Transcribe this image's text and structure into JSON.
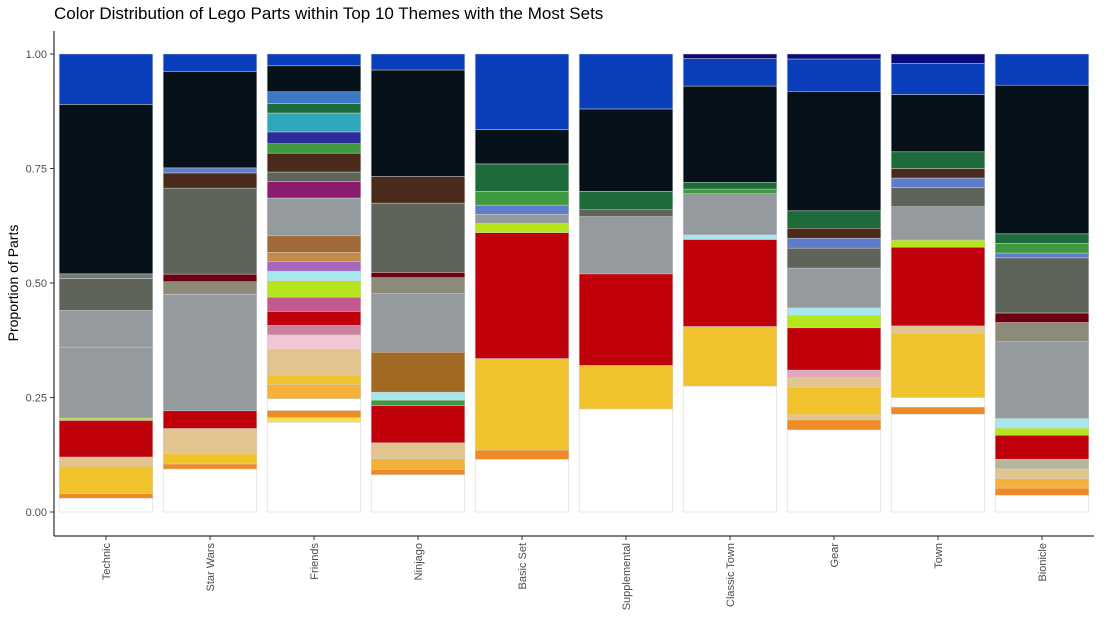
{
  "chart_data": {
    "type": "bar",
    "stacked": true,
    "normalized": true,
    "title": "Color Distribution of Lego Parts within Top 10 Themes with the Most Sets",
    "xlabel": "",
    "ylabel": "Proportion of Parts",
    "ylim": [
      0,
      1.0
    ],
    "yticks": [
      "0.00",
      "0.25",
      "0.50",
      "0.75",
      "1.00"
    ],
    "grid": false,
    "legend": "none",
    "categories": [
      "Technic",
      "Star Wars",
      "Friends",
      "Ninjago",
      "Basic Set",
      "Supplemental",
      "Classic Town",
      "Gear",
      "Town",
      "Bionicle"
    ],
    "bars": [
      {
        "category": "Technic",
        "segments": [
          {
            "color": "#ffffff",
            "value": 0.03
          },
          {
            "color": "#f08a24",
            "value": 0.01
          },
          {
            "color": "#f0c22c",
            "value": 0.06
          },
          {
            "color": "#e2c48f",
            "value": 0.02
          },
          {
            "color": "#c0000a",
            "value": 0.08
          },
          {
            "color": "#b5e61d",
            "value": 0.005
          },
          {
            "color": "#949a9d",
            "value": 0.155
          },
          {
            "color": "#949a9d",
            "value": 0.08
          },
          {
            "color": "#5f645b",
            "value": 0.07
          },
          {
            "color": "#707b76",
            "value": 0.01
          },
          {
            "color": "#06111a",
            "value": 0.37
          },
          {
            "color": "#0a3ebb",
            "value": 0.11
          }
        ]
      },
      {
        "category": "Star Wars",
        "segments": [
          {
            "color": "#ffffff",
            "value": 0.085
          },
          {
            "color": "#f08a24",
            "value": 0.01
          },
          {
            "color": "#f0c22c",
            "value": 0.02
          },
          {
            "color": "#e2c48f",
            "value": 0.05
          },
          {
            "color": "#c0000a",
            "value": 0.035
          },
          {
            "color": "#949a9d",
            "value": 0.23
          },
          {
            "color": "#8b8b78",
            "value": 0.025
          },
          {
            "color": "#6b0010",
            "value": 0.015
          },
          {
            "color": "#5f645b",
            "value": 0.17
          },
          {
            "color": "#4a2a1a",
            "value": 0.03
          },
          {
            "color": "#5e7cc9",
            "value": 0.01
          },
          {
            "color": "#06111a",
            "value": 0.19
          },
          {
            "color": "#0a3ebb",
            "value": 0.035
          }
        ]
      },
      {
        "category": "Friends",
        "segments": [
          {
            "color": "#ffffff",
            "value": 0.19
          },
          {
            "color": "#f7e14a",
            "value": 0.01
          },
          {
            "color": "#f08a24",
            "value": 0.015
          },
          {
            "color": "#ffffff",
            "value": 0.025
          },
          {
            "color": "#f6b13a",
            "value": 0.03
          },
          {
            "color": "#f0c22c",
            "value": 0.02
          },
          {
            "color": "#e2c48f",
            "value": 0.055
          },
          {
            "color": "#f2c6d6",
            "value": 0.03
          },
          {
            "color": "#c9829e",
            "value": 0.02
          },
          {
            "color": "#c0000a",
            "value": 0.03
          },
          {
            "color": "#c25a8e",
            "value": 0.03
          },
          {
            "color": "#b5e61d",
            "value": 0.035
          },
          {
            "color": "#a6e8ee",
            "value": 0.02
          },
          {
            "color": "#a566bf",
            "value": 0.02
          },
          {
            "color": "#c48a4a",
            "value": 0.02
          },
          {
            "color": "#a06a3a",
            "value": 0.035
          },
          {
            "color": "#949a9d",
            "value": 0.08
          },
          {
            "color": "#8a1c6e",
            "value": 0.035
          },
          {
            "color": "#5f645b",
            "value": 0.02
          },
          {
            "color": "#4a2a1a",
            "value": 0.04
          },
          {
            "color": "#3f9a3f",
            "value": 0.02
          },
          {
            "color": "#2c2c9a",
            "value": 0.025
          },
          {
            "color": "#2fa6bc",
            "value": 0.04
          },
          {
            "color": "#1d6a3a",
            "value": 0.02
          },
          {
            "color": "#3b79c8",
            "value": 0.025
          },
          {
            "color": "#06111a",
            "value": 0.055
          },
          {
            "color": "#0a3ebb",
            "value": 0.025
          }
        ]
      },
      {
        "category": "Ninjago",
        "segments": [
          {
            "color": "#ffffff",
            "value": 0.07
          },
          {
            "color": "#f08a24",
            "value": 0.01
          },
          {
            "color": "#f6b13a",
            "value": 0.02
          },
          {
            "color": "#e2c48f",
            "value": 0.03
          },
          {
            "color": "#c0000a",
            "value": 0.07
          },
          {
            "color": "#3f9a3f",
            "value": 0.01
          },
          {
            "color": "#a6e8ee",
            "value": 0.015
          },
          {
            "color": "#a06a24",
            "value": 0.075
          },
          {
            "color": "#949a9d",
            "value": 0.11
          },
          {
            "color": "#8b8b78",
            "value": 0.03
          },
          {
            "color": "#6b0010",
            "value": 0.01
          },
          {
            "color": "#5f645b",
            "value": 0.13
          },
          {
            "color": "#4a2a1a",
            "value": 0.05
          },
          {
            "color": "#06111a",
            "value": 0.2
          },
          {
            "color": "#0a3ebb",
            "value": 0.03
          }
        ]
      },
      {
        "category": "Basic Set",
        "segments": [
          {
            "color": "#ffffff",
            "value": 0.115
          },
          {
            "color": "#f08a24",
            "value": 0.02
          },
          {
            "color": "#f0c22c",
            "value": 0.2
          },
          {
            "color": "#c0000a",
            "value": 0.275
          },
          {
            "color": "#b5e61d",
            "value": 0.02
          },
          {
            "color": "#949a9d",
            "value": 0.02
          },
          {
            "color": "#5e7cc9",
            "value": 0.02
          },
          {
            "color": "#3f9a3f",
            "value": 0.03
          },
          {
            "color": "#1d6a3a",
            "value": 0.06
          },
          {
            "color": "#06111a",
            "value": 0.075
          },
          {
            "color": "#0a3ebb",
            "value": 0.165
          }
        ]
      },
      {
        "category": "Supplemental",
        "segments": [
          {
            "color": "#ffffff",
            "value": 0.225
          },
          {
            "color": "#f0c22c",
            "value": 0.095
          },
          {
            "color": "#c0000a",
            "value": 0.2
          },
          {
            "color": "#949a9d",
            "value": 0.125
          },
          {
            "color": "#5f645b",
            "value": 0.015
          },
          {
            "color": "#1d6a3a",
            "value": 0.04
          },
          {
            "color": "#06111a",
            "value": 0.18
          },
          {
            "color": "#0a3ebb",
            "value": 0.12
          }
        ]
      },
      {
        "category": "Classic Town",
        "segments": [
          {
            "color": "#ffffff",
            "value": 0.275
          },
          {
            "color": "#f0c22c",
            "value": 0.13
          },
          {
            "color": "#c0000a",
            "value": 0.19
          },
          {
            "color": "#a6e8ee",
            "value": 0.01
          },
          {
            "color": "#949a9d",
            "value": 0.09
          },
          {
            "color": "#3f9a3f",
            "value": 0.01
          },
          {
            "color": "#1d6a3a",
            "value": 0.015
          },
          {
            "color": "#06111a",
            "value": 0.21
          },
          {
            "color": "#0a3ebb",
            "value": 0.06
          },
          {
            "color": "#0a0a7a",
            "value": 0.01
          }
        ]
      },
      {
        "category": "Gear",
        "segments": [
          {
            "color": "#ffffff",
            "value": 0.165
          },
          {
            "color": "#f08a24",
            "value": 0.02
          },
          {
            "color": "#e2c48f",
            "value": 0.01
          },
          {
            "color": "#f0c22c",
            "value": 0.055
          },
          {
            "color": "#e2c48f",
            "value": 0.02
          },
          {
            "color": "#e0a8bc",
            "value": 0.015
          },
          {
            "color": "#c0000a",
            "value": 0.085
          },
          {
            "color": "#b5e61d",
            "value": 0.025
          },
          {
            "color": "#a6e8ee",
            "value": 0.015
          },
          {
            "color": "#949a9d",
            "value": 0.08
          },
          {
            "color": "#5f645b",
            "value": 0.04
          },
          {
            "color": "#5e7cc9",
            "value": 0.02
          },
          {
            "color": "#4a2a1a",
            "value": 0.02
          },
          {
            "color": "#1d6a3a",
            "value": 0.035
          },
          {
            "color": "#06111a",
            "value": 0.24
          },
          {
            "color": "#0a3ebb",
            "value": 0.065
          },
          {
            "color": "#0a0a7a",
            "value": 0.01
          }
        ]
      },
      {
        "category": "Town",
        "segments": [
          {
            "color": "#ffffff",
            "value": 0.205
          },
          {
            "color": "#f08a24",
            "value": 0.015
          },
          {
            "color": "#ffffff",
            "value": 0.02
          },
          {
            "color": "#f0c22c",
            "value": 0.135
          },
          {
            "color": "#e2c48f",
            "value": 0.015
          },
          {
            "color": "#c0000a",
            "value": 0.165
          },
          {
            "color": "#b5e61d",
            "value": 0.015
          },
          {
            "color": "#949a9d",
            "value": 0.07
          },
          {
            "color": "#5f645b",
            "value": 0.04
          },
          {
            "color": "#5e7cc9",
            "value": 0.02
          },
          {
            "color": "#4a2a1a",
            "value": 0.02
          },
          {
            "color": "#1d6a3a",
            "value": 0.035
          },
          {
            "color": "#06111a",
            "value": 0.12
          },
          {
            "color": "#0a3ebb",
            "value": 0.065
          },
          {
            "color": "#0a0a7a",
            "value": 0.02
          }
        ]
      },
      {
        "category": "Bionicle",
        "segments": [
          {
            "color": "#ffffff",
            "value": 0.035
          },
          {
            "color": "#f08a24",
            "value": 0.015
          },
          {
            "color": "#f6b13a",
            "value": 0.02
          },
          {
            "color": "#e2c48f",
            "value": 0.02
          },
          {
            "color": "#b5b59a",
            "value": 0.02
          },
          {
            "color": "#c0000a",
            "value": 0.05
          },
          {
            "color": "#b5e61d",
            "value": 0.015
          },
          {
            "color": "#a6e8ee",
            "value": 0.02
          },
          {
            "color": "#949a9d",
            "value": 0.16
          },
          {
            "color": "#8b8b78",
            "value": 0.04
          },
          {
            "color": "#6b0010",
            "value": 0.02
          },
          {
            "color": "#5f645b",
            "value": 0.115
          },
          {
            "color": "#5e7cc9",
            "value": 0.01
          },
          {
            "color": "#3f9a3f",
            "value": 0.02
          },
          {
            "color": "#1d6a3a",
            "value": 0.02
          },
          {
            "color": "#06111a",
            "value": 0.31
          },
          {
            "color": "#0a3ebb",
            "value": 0.065
          }
        ]
      }
    ]
  }
}
